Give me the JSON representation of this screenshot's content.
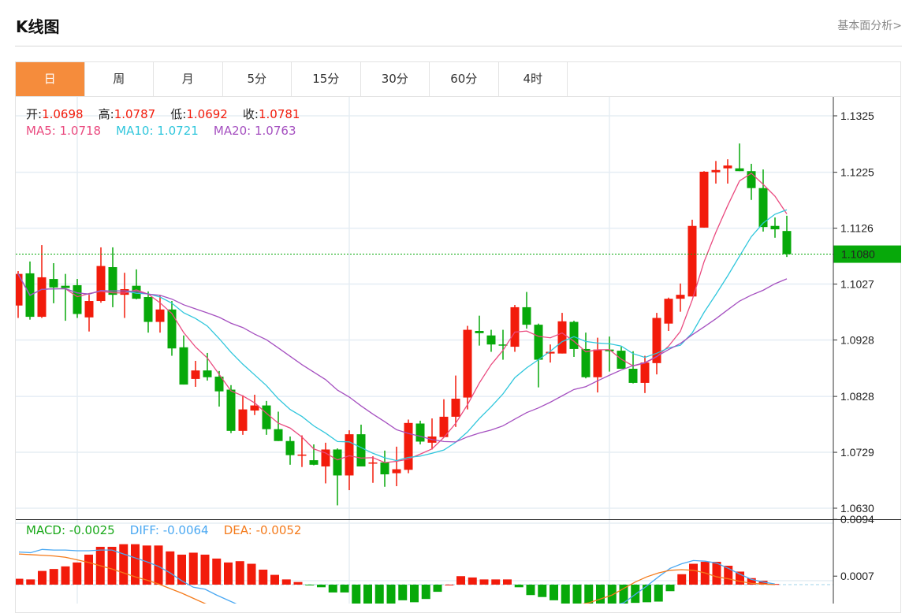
{
  "header": {
    "title": "K线图",
    "link": "基本面分析>"
  },
  "tabs": [
    {
      "label": "日",
      "active": true
    },
    {
      "label": "周"
    },
    {
      "label": "月"
    },
    {
      "label": "5分"
    },
    {
      "label": "15分"
    },
    {
      "label": "30分"
    },
    {
      "label": "60分"
    },
    {
      "label": "4时"
    }
  ],
  "ohlc_info": {
    "open_label": "开:",
    "open": "1.0698",
    "high_label": "高:",
    "high": "1.0787",
    "low_label": "低:",
    "low": "1.0692",
    "close_label": "收:",
    "close": "1.0781"
  },
  "ma_info": {
    "ma5_label": "MA5:",
    "ma5": "1.0718",
    "ma10_label": "MA10:",
    "ma10": "1.0721",
    "ma20_label": "MA20:",
    "ma20": "1.0763"
  },
  "macd_info": {
    "macd_label": "MACD:",
    "macd": "-0.0025",
    "diff_label": "DIFF:",
    "diff": "-0.0064",
    "dea_label": "DEA:",
    "dea": "-0.0052"
  },
  "colors": {
    "up": "#f21b0b",
    "down": "#07a90a",
    "ma5": "#ea4a7f",
    "ma10": "#2fc6dc",
    "ma20": "#a550c0",
    "diff": "#4aa8f2",
    "dea": "#f47b1c",
    "last_price": "#07a90a",
    "tab_active": "#f58c3c"
  },
  "chart_data": [
    {
      "type": "candlestick",
      "title": "K线图",
      "ylim": [
        1.063,
        1.1325
      ],
      "y_ticks": [
        "1.1325",
        "1.1225",
        "1.1126",
        "1.1027",
        "1.0928",
        "1.0828",
        "1.0729",
        "1.0630"
      ],
      "last_price": "1.1080",
      "ma_periods": [
        5,
        10,
        20
      ],
      "grid": true,
      "ohlc": [
        [
          1.0989,
          1.105,
          1.0967,
          1.1045
        ],
        [
          1.1046,
          1.1067,
          1.0964,
          1.0969
        ],
        [
          1.0969,
          1.1096,
          1.0967,
          1.1039
        ],
        [
          1.1036,
          1.1064,
          1.0993,
          1.1021
        ],
        [
          1.1024,
          1.1045,
          1.0962,
          1.102
        ],
        [
          1.1025,
          1.1036,
          1.0967,
          1.0974
        ],
        [
          1.0968,
          1.1008,
          1.0943,
          1.0997
        ],
        [
          1.0997,
          1.1092,
          1.0994,
          1.1059
        ],
        [
          1.1057,
          1.1092,
          1.0986,
          1.1008
        ],
        [
          1.1008,
          1.1047,
          1.0967,
          1.1018
        ],
        [
          1.1024,
          1.1053,
          1.1,
          1.1001
        ],
        [
          1.1004,
          1.1014,
          1.0941,
          1.096
        ],
        [
          1.096,
          1.1007,
          1.0941,
          1.0982
        ],
        [
          1.0982,
          1.0997,
          1.09,
          1.0913
        ],
        [
          1.0915,
          1.0936,
          1.0849,
          1.0849
        ],
        [
          1.0859,
          1.0891,
          1.0845,
          1.0874
        ],
        [
          1.0874,
          1.0905,
          1.0856,
          1.0862
        ],
        [
          1.0863,
          1.0873,
          1.081,
          1.0837
        ],
        [
          1.084,
          1.0848,
          1.0763,
          1.0767
        ],
        [
          1.0767,
          1.083,
          1.076,
          1.0805
        ],
        [
          1.0803,
          1.0831,
          1.0795,
          1.0812
        ],
        [
          1.0812,
          1.082,
          1.076,
          1.077
        ],
        [
          1.077,
          1.0801,
          1.0749,
          1.0749
        ],
        [
          1.0749,
          1.0757,
          1.0707,
          1.0724
        ],
        [
          1.0724,
          1.0759,
          1.0703,
          1.0725
        ],
        [
          1.0715,
          1.0743,
          1.0706,
          1.0707
        ],
        [
          1.0704,
          1.0746,
          1.0674,
          1.0734
        ],
        [
          1.0734,
          1.0736,
          1.0635,
          1.0688
        ],
        [
          1.0688,
          1.0768,
          1.0662,
          1.0761
        ],
        [
          1.0761,
          1.0778,
          1.0704,
          1.0704
        ],
        [
          1.071,
          1.0722,
          1.0675,
          1.0711
        ],
        [
          1.0711,
          1.0732,
          1.0668,
          1.069
        ],
        [
          1.0692,
          1.0739,
          1.0669,
          1.0699
        ],
        [
          1.0698,
          1.0787,
          1.0692,
          1.0781
        ],
        [
          1.078,
          1.0785,
          1.0743,
          1.0748
        ],
        [
          1.0746,
          1.0789,
          1.0734,
          1.0757
        ],
        [
          1.0756,
          1.0823,
          1.0756,
          1.0792
        ],
        [
          1.0792,
          1.0865,
          1.0774,
          1.0824
        ],
        [
          1.0826,
          1.0953,
          1.0805,
          1.0946
        ],
        [
          1.0944,
          1.0971,
          1.0918,
          1.094
        ],
        [
          1.0936,
          1.0946,
          1.0907,
          1.092
        ],
        [
          1.092,
          1.0946,
          1.0893,
          1.0918
        ],
        [
          1.0916,
          1.099,
          1.0907,
          1.0986
        ],
        [
          1.0986,
          1.1013,
          1.0948,
          1.0955
        ],
        [
          1.0955,
          1.0957,
          1.0844,
          1.0893
        ],
        [
          1.0904,
          1.092,
          1.0888,
          1.0907
        ],
        [
          1.0904,
          1.0976,
          1.0904,
          1.0961
        ],
        [
          1.096,
          1.0962,
          1.0898,
          1.0912
        ],
        [
          1.0912,
          1.0941,
          1.086,
          1.0862
        ],
        [
          1.0862,
          1.0932,
          1.0835,
          1.0911
        ],
        [
          1.0911,
          1.0934,
          1.0872,
          1.0908
        ],
        [
          1.0909,
          1.0916,
          1.0877,
          1.0877
        ],
        [
          1.0877,
          1.0908,
          1.0851,
          1.0852
        ],
        [
          1.0852,
          1.09,
          1.0834,
          1.0888
        ],
        [
          1.0887,
          1.0976,
          1.0867,
          1.0967
        ],
        [
          1.0957,
          1.1003,
          1.0944,
          1.1001
        ],
        [
          1.1001,
          1.1028,
          1.0978,
          1.1008
        ],
        [
          1.1005,
          1.1141,
          1.1005,
          1.113
        ],
        [
          1.1127,
          1.1227,
          1.1127,
          1.1226
        ],
        [
          1.1225,
          1.1245,
          1.1205,
          1.1229
        ],
        [
          1.1232,
          1.1248,
          1.1205,
          1.1237
        ],
        [
          1.1232,
          1.1276,
          1.1227,
          1.1227
        ],
        [
          1.1227,
          1.124,
          1.1176,
          1.1197
        ],
        [
          1.1197,
          1.123,
          1.112,
          1.1128
        ],
        [
          1.113,
          1.1145,
          1.1109,
          1.1124
        ],
        [
          1.1121,
          1.1148,
          1.1075,
          1.108
        ]
      ]
    },
    {
      "type": "bar+line",
      "title": "MACD",
      "ylim": [
        -0.0028,
        0.01
      ],
      "y_ticks": [
        "0.0094",
        "0.0007"
      ],
      "histogram": [
        0.0009,
        0.0008,
        0.0021,
        0.0024,
        0.0028,
        0.0034,
        0.0046,
        0.0058,
        0.0058,
        0.0062,
        0.0062,
        0.006,
        0.006,
        0.0051,
        0.0046,
        0.0049,
        0.0046,
        0.004,
        0.0034,
        0.0036,
        0.0032,
        0.0023,
        0.0015,
        0.0008,
        0.0004,
        -0.0001,
        -0.0004,
        -0.0012,
        -0.0012,
        -0.003,
        -0.003,
        -0.0031,
        -0.003,
        -0.0024,
        -0.0027,
        -0.0022,
        -0.0011,
        0.0,
        0.0013,
        0.0011,
        0.0008,
        0.0008,
        0.0008,
        -0.0004,
        -0.0016,
        -0.0019,
        -0.0024,
        -0.003,
        -0.0032,
        -0.0033,
        -0.0032,
        -0.0031,
        -0.003,
        -0.0028,
        -0.0027,
        -0.0026,
        -0.001,
        0.0016,
        0.0032,
        0.0035,
        0.0035,
        0.0029,
        0.002,
        0.001,
        0.0006,
        0.0001
      ],
      "diff": [
        0.005,
        0.0049,
        0.0054,
        0.0053,
        0.0053,
        0.0052,
        0.0052,
        0.0053,
        0.0053,
        0.0047,
        0.0041,
        0.0035,
        0.0028,
        0.0018,
        0.0006,
        -0.0004,
        -0.0007,
        -0.0016,
        -0.0024,
        -0.0032,
        -0.004,
        -0.0048,
        -0.0055,
        -0.0062,
        -0.0067,
        -0.0071,
        -0.0074,
        -0.0076,
        -0.0073,
        -0.0073,
        -0.0071,
        -0.0069,
        -0.0068,
        -0.0064,
        -0.0062,
        -0.0058,
        -0.0052,
        -0.0046,
        -0.0036,
        -0.0034,
        -0.0034,
        -0.0032,
        -0.003,
        -0.0036,
        -0.0043,
        -0.0045,
        -0.0048,
        -0.0045,
        -0.0043,
        -0.004,
        -0.0036,
        -0.0032,
        -0.0028,
        -0.0015,
        -0.0002,
        0.0012,
        0.0025,
        0.0032,
        0.0037,
        0.0036,
        0.0033,
        0.0025,
        0.0016,
        0.0008,
        0.0004,
        0.0001
      ],
      "dea": [
        0.0047,
        0.0046,
        0.0045,
        0.0044,
        0.0042,
        0.0038,
        0.0034,
        0.0029,
        0.0024,
        0.0018,
        0.0012,
        0.0007,
        0.0001,
        -0.0006,
        -0.0013,
        -0.0021,
        -0.0029,
        -0.0035,
        -0.004,
        -0.0045,
        -0.005,
        -0.0054,
        -0.0058,
        -0.0061,
        -0.0064,
        -0.0066,
        -0.0067,
        -0.0068,
        -0.0068,
        -0.0066,
        -0.0063,
        -0.006,
        -0.0056,
        -0.0052,
        -0.0049,
        -0.0047,
        -0.0046,
        -0.0046,
        -0.0043,
        -0.004,
        -0.0038,
        -0.0036,
        -0.0034,
        -0.0034,
        -0.0035,
        -0.0036,
        -0.0036,
        -0.0036,
        -0.0031,
        -0.0028,
        -0.0022,
        -0.0016,
        -0.0006,
        0.0004,
        0.0012,
        0.0018,
        0.0022,
        0.0023,
        0.0022,
        0.0018,
        0.0012,
        0.0009,
        0.0005,
        0.0002,
        0.0001,
        0.0
      ]
    }
  ]
}
